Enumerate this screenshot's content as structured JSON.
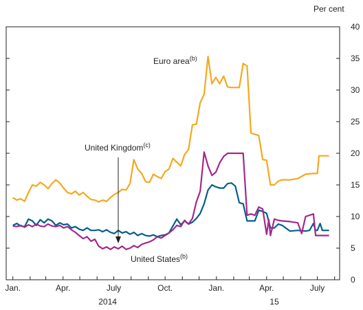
{
  "chart_data": {
    "type": "line",
    "unit_label": "Per cent",
    "year_labels": [
      "2014",
      "15"
    ],
    "x_tick_labels": [
      "Jan.",
      "Apr.",
      "July",
      "Oct.",
      "Jan.",
      "Apr.",
      "July"
    ],
    "x_tick_dates": [
      "2014-01-01",
      "2014-04-01",
      "2014-07-01",
      "2014-10-01",
      "2015-01-01",
      "2015-04-01",
      "2015-07-01"
    ],
    "y_ticks": [
      0,
      5,
      10,
      15,
      20,
      25,
      30,
      35,
      40
    ],
    "ylim": [
      0,
      40
    ],
    "xlim": [
      "2013-12-20",
      "2015-08-10"
    ],
    "annotations": [
      {
        "text": "Euro area",
        "sup": "(b)",
        "series": "Euro area"
      },
      {
        "text": "United Kingdom",
        "sup": "(c)",
        "series": "United Kingdom"
      },
      {
        "text": "United States",
        "sup": "(b)",
        "series": "United States"
      }
    ],
    "series": [
      {
        "name": "Euro area",
        "color": "#f5a81c",
        "points": [
          [
            "2014-01-01",
            13.0
          ],
          [
            "2014-01-08",
            12.6
          ],
          [
            "2014-01-15",
            12.8
          ],
          [
            "2014-01-22",
            12.4
          ],
          [
            "2014-01-29",
            13.8
          ],
          [
            "2014-02-05",
            15.0
          ],
          [
            "2014-02-12",
            14.8
          ],
          [
            "2014-02-19",
            15.4
          ],
          [
            "2014-02-26",
            15.0
          ],
          [
            "2014-03-05",
            14.4
          ],
          [
            "2014-03-12",
            15.2
          ],
          [
            "2014-03-19",
            15.8
          ],
          [
            "2014-03-26",
            15.3
          ],
          [
            "2014-04-02",
            14.5
          ],
          [
            "2014-04-09",
            13.8
          ],
          [
            "2014-04-16",
            13.6
          ],
          [
            "2014-04-23",
            14.0
          ],
          [
            "2014-04-30",
            13.4
          ],
          [
            "2014-05-07",
            13.8
          ],
          [
            "2014-05-14",
            13.2
          ],
          [
            "2014-05-21",
            12.7
          ],
          [
            "2014-05-28",
            12.6
          ],
          [
            "2014-06-04",
            12.3
          ],
          [
            "2014-06-11",
            12.6
          ],
          [
            "2014-06-18",
            12.4
          ],
          [
            "2014-06-25",
            13.0
          ],
          [
            "2014-07-02",
            13.5
          ],
          [
            "2014-07-09",
            13.8
          ],
          [
            "2014-07-16",
            14.3
          ],
          [
            "2014-07-23",
            14.2
          ],
          [
            "2014-07-30",
            15.2
          ],
          [
            "2014-08-06",
            19.0
          ],
          [
            "2014-08-13",
            17.5
          ],
          [
            "2014-08-20",
            16.8
          ],
          [
            "2014-08-27",
            15.5
          ],
          [
            "2014-09-03",
            15.4
          ],
          [
            "2014-09-10",
            16.7
          ],
          [
            "2014-09-17",
            16.3
          ],
          [
            "2014-09-24",
            16.0
          ],
          [
            "2014-10-01",
            17.1
          ],
          [
            "2014-10-08",
            17.5
          ],
          [
            "2014-10-15",
            19.2
          ],
          [
            "2014-10-22",
            18.6
          ],
          [
            "2014-10-29",
            18.0
          ],
          [
            "2014-11-05",
            19.8
          ],
          [
            "2014-11-12",
            20.6
          ],
          [
            "2014-11-19",
            24.5
          ],
          [
            "2014-11-26",
            24.6
          ],
          [
            "2014-12-03",
            28.0
          ],
          [
            "2014-12-10",
            29.3
          ],
          [
            "2014-12-17",
            35.3
          ],
          [
            "2014-12-24",
            31.0
          ],
          [
            "2014-12-31",
            32.0
          ],
          [
            "2015-01-07",
            31.0
          ],
          [
            "2015-01-14",
            32.2
          ],
          [
            "2015-01-21",
            30.5
          ],
          [
            "2015-01-28",
            30.4
          ],
          [
            "2015-02-04",
            30.4
          ],
          [
            "2015-02-11",
            30.4
          ],
          [
            "2015-02-18",
            34.2
          ],
          [
            "2015-02-25",
            33.8
          ],
          [
            "2015-03-04",
            23.2
          ],
          [
            "2015-03-11",
            23.0
          ],
          [
            "2015-03-18",
            22.8
          ],
          [
            "2015-03-25",
            19.0
          ],
          [
            "2015-04-01",
            18.9
          ],
          [
            "2015-04-08",
            15.0
          ],
          [
            "2015-04-15",
            15.0
          ],
          [
            "2015-04-22",
            15.6
          ],
          [
            "2015-04-29",
            15.8
          ],
          [
            "2015-05-13",
            15.8
          ],
          [
            "2015-05-27",
            16.0
          ],
          [
            "2015-06-10",
            16.7
          ],
          [
            "2015-06-24",
            16.8
          ],
          [
            "2015-07-01",
            16.8
          ],
          [
            "2015-07-04",
            19.6
          ],
          [
            "2015-07-22",
            19.6
          ]
        ]
      },
      {
        "name": "United Kingdom",
        "color": "#005e8c",
        "points": [
          [
            "2014-01-01",
            8.6
          ],
          [
            "2014-01-08",
            8.9
          ],
          [
            "2014-01-15",
            8.5
          ],
          [
            "2014-01-22",
            8.4
          ],
          [
            "2014-01-29",
            9.6
          ],
          [
            "2014-02-05",
            9.3
          ],
          [
            "2014-02-12",
            8.6
          ],
          [
            "2014-02-19",
            9.5
          ],
          [
            "2014-02-26",
            9.0
          ],
          [
            "2014-03-05",
            9.6
          ],
          [
            "2014-03-12",
            9.3
          ],
          [
            "2014-03-19",
            8.6
          ],
          [
            "2014-03-26",
            9.0
          ],
          [
            "2014-04-02",
            8.7
          ],
          [
            "2014-04-09",
            8.8
          ],
          [
            "2014-04-16",
            8.2
          ],
          [
            "2014-04-23",
            8.4
          ],
          [
            "2014-04-30",
            8.0
          ],
          [
            "2014-05-07",
            7.8
          ],
          [
            "2014-05-14",
            8.2
          ],
          [
            "2014-05-21",
            7.8
          ],
          [
            "2014-05-28",
            7.8
          ],
          [
            "2014-06-04",
            7.9
          ],
          [
            "2014-06-11",
            7.6
          ],
          [
            "2014-06-18",
            7.9
          ],
          [
            "2014-06-25",
            7.5
          ],
          [
            "2014-07-02",
            7.3
          ],
          [
            "2014-07-09",
            7.8
          ],
          [
            "2014-07-16",
            7.4
          ],
          [
            "2014-07-23",
            7.6
          ],
          [
            "2014-07-30",
            7.2
          ],
          [
            "2014-08-06",
            7.5
          ],
          [
            "2014-08-13",
            7.0
          ],
          [
            "2014-08-20",
            7.3
          ],
          [
            "2014-08-27",
            7.0
          ],
          [
            "2014-09-03",
            6.9
          ],
          [
            "2014-09-10",
            7.1
          ],
          [
            "2014-09-17",
            6.8
          ],
          [
            "2014-09-24",
            7.0
          ],
          [
            "2014-10-01",
            7.1
          ],
          [
            "2014-10-08",
            7.4
          ],
          [
            "2014-10-15",
            8.5
          ],
          [
            "2014-10-22",
            9.6
          ],
          [
            "2014-10-29",
            8.7
          ],
          [
            "2014-11-05",
            9.3
          ],
          [
            "2014-11-12",
            8.8
          ],
          [
            "2014-11-19",
            9.1
          ],
          [
            "2014-11-26",
            9.7
          ],
          [
            "2014-12-03",
            10.5
          ],
          [
            "2014-12-10",
            12.0
          ],
          [
            "2014-12-17",
            14.2
          ],
          [
            "2014-12-24",
            15.0
          ],
          [
            "2014-12-31",
            14.7
          ],
          [
            "2015-01-07",
            14.5
          ],
          [
            "2015-01-14",
            14.5
          ],
          [
            "2015-01-21",
            15.2
          ],
          [
            "2015-01-28",
            15.3
          ],
          [
            "2015-02-04",
            14.8
          ],
          [
            "2015-02-11",
            12.2
          ],
          [
            "2015-02-18",
            12.0
          ],
          [
            "2015-02-25",
            9.3
          ],
          [
            "2015-03-04",
            9.3
          ],
          [
            "2015-03-11",
            9.3
          ],
          [
            "2015-03-18",
            11.0
          ],
          [
            "2015-03-25",
            10.8
          ],
          [
            "2015-04-01",
            10.5
          ],
          [
            "2015-04-08",
            8.2
          ],
          [
            "2015-04-15",
            8.2
          ],
          [
            "2015-04-22",
            8.8
          ],
          [
            "2015-04-29",
            8.6
          ],
          [
            "2015-05-13",
            7.7
          ],
          [
            "2015-05-27",
            7.8
          ],
          [
            "2015-06-10",
            7.7
          ],
          [
            "2015-06-17",
            7.8
          ],
          [
            "2015-06-24",
            8.9
          ],
          [
            "2015-06-28",
            7.8
          ],
          [
            "2015-07-01",
            7.8
          ],
          [
            "2015-07-06",
            8.9
          ],
          [
            "2015-07-10",
            7.8
          ],
          [
            "2015-07-22",
            7.8
          ]
        ]
      },
      {
        "name": "United States",
        "color": "#a4278b",
        "points": [
          [
            "2014-01-01",
            8.5
          ],
          [
            "2014-01-08",
            8.4
          ],
          [
            "2014-01-15",
            8.6
          ],
          [
            "2014-01-22",
            8.3
          ],
          [
            "2014-01-29",
            8.7
          ],
          [
            "2014-02-05",
            8.4
          ],
          [
            "2014-02-12",
            8.8
          ],
          [
            "2014-02-19",
            8.5
          ],
          [
            "2014-02-26",
            8.4
          ],
          [
            "2014-03-05",
            8.8
          ],
          [
            "2014-03-12",
            8.5
          ],
          [
            "2014-03-19",
            8.4
          ],
          [
            "2014-03-26",
            8.6
          ],
          [
            "2014-04-02",
            8.2
          ],
          [
            "2014-04-09",
            8.4
          ],
          [
            "2014-04-16",
            7.9
          ],
          [
            "2014-04-23",
            7.5
          ],
          [
            "2014-04-30",
            7.0
          ],
          [
            "2014-05-07",
            6.5
          ],
          [
            "2014-05-14",
            6.8
          ],
          [
            "2014-05-21",
            6.1
          ],
          [
            "2014-05-28",
            6.4
          ],
          [
            "2014-06-04",
            5.3
          ],
          [
            "2014-06-11",
            4.9
          ],
          [
            "2014-06-18",
            5.2
          ],
          [
            "2014-06-25",
            4.8
          ],
          [
            "2014-07-02",
            5.2
          ],
          [
            "2014-07-09",
            4.9
          ],
          [
            "2014-07-16",
            5.3
          ],
          [
            "2014-07-23",
            4.8
          ],
          [
            "2014-07-30",
            5.0
          ],
          [
            "2014-08-06",
            5.4
          ],
          [
            "2014-08-13",
            5.1
          ],
          [
            "2014-08-20",
            5.6
          ],
          [
            "2014-08-27",
            5.8
          ],
          [
            "2014-09-03",
            6.0
          ],
          [
            "2014-09-10",
            6.3
          ],
          [
            "2014-09-17",
            6.8
          ],
          [
            "2014-09-24",
            6.6
          ],
          [
            "2014-10-01",
            7.0
          ],
          [
            "2014-10-08",
            7.4
          ],
          [
            "2014-10-15",
            7.9
          ],
          [
            "2014-10-22",
            8.6
          ],
          [
            "2014-10-29",
            8.4
          ],
          [
            "2014-11-05",
            9.4
          ],
          [
            "2014-11-12",
            8.8
          ],
          [
            "2014-11-19",
            9.7
          ],
          [
            "2014-11-26",
            12.3
          ],
          [
            "2014-12-03",
            14.0
          ],
          [
            "2014-12-10",
            20.2
          ],
          [
            "2014-12-17",
            18.0
          ],
          [
            "2014-12-24",
            16.5
          ],
          [
            "2014-12-31",
            17.0
          ],
          [
            "2015-01-07",
            18.5
          ],
          [
            "2015-01-14",
            19.5
          ],
          [
            "2015-01-21",
            20.0
          ],
          [
            "2015-01-28",
            20.0
          ],
          [
            "2015-02-04",
            20.0
          ],
          [
            "2015-02-11",
            20.0
          ],
          [
            "2015-02-18",
            20.0
          ],
          [
            "2015-02-25",
            10.2
          ],
          [
            "2015-03-04",
            10.4
          ],
          [
            "2015-03-11",
            10.2
          ],
          [
            "2015-03-18",
            11.5
          ],
          [
            "2015-03-25",
            11.2
          ],
          [
            "2015-04-01",
            7.2
          ],
          [
            "2015-04-05",
            9.5
          ],
          [
            "2015-04-08",
            7.0
          ],
          [
            "2015-04-15",
            9.6
          ],
          [
            "2015-04-22",
            9.4
          ],
          [
            "2015-04-29",
            9.3
          ],
          [
            "2015-05-13",
            9.2
          ],
          [
            "2015-05-27",
            9.0
          ],
          [
            "2015-06-03",
            7.3
          ],
          [
            "2015-06-10",
            10.0
          ],
          [
            "2015-06-17",
            10.2
          ],
          [
            "2015-06-24",
            10.4
          ],
          [
            "2015-06-28",
            7.0
          ],
          [
            "2015-07-10",
            7.0
          ],
          [
            "2015-07-22",
            7.0
          ]
        ]
      }
    ]
  }
}
